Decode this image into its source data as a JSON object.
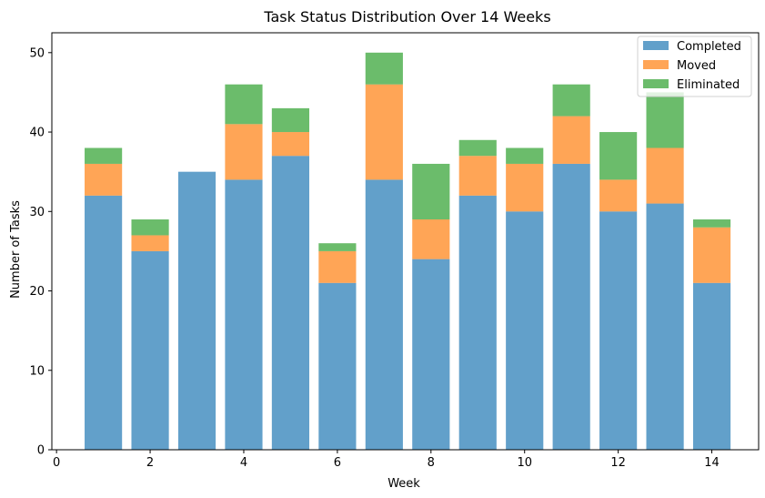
{
  "chart_data": {
    "type": "bar",
    "stacked": true,
    "title": "Task Status Distribution Over 14 Weeks",
    "xlabel": "Week",
    "ylabel": "Number of Tasks",
    "x": [
      1,
      2,
      3,
      4,
      5,
      6,
      7,
      8,
      9,
      10,
      11,
      12,
      13,
      14
    ],
    "xlim": [
      -0.1,
      15.0
    ],
    "ylim": [
      0,
      52.5
    ],
    "xticks": [
      0,
      2,
      4,
      6,
      8,
      10,
      12,
      14
    ],
    "yticks": [
      0,
      10,
      20,
      30,
      40,
      50
    ],
    "grid": false,
    "legend_position": "top-right",
    "series": [
      {
        "name": "Completed",
        "color": "#1f77b4",
        "values": [
          32,
          25,
          35,
          34,
          37,
          21,
          34,
          24,
          32,
          30,
          36,
          30,
          31,
          21
        ]
      },
      {
        "name": "Moved",
        "color": "#ff7f0e",
        "values": [
          4,
          2,
          0,
          7,
          3,
          4,
          12,
          5,
          5,
          6,
          6,
          4,
          7,
          7
        ]
      },
      {
        "name": "Eliminated",
        "color": "#2ca02c",
        "values": [
          2,
          2,
          0,
          5,
          3,
          1,
          4,
          7,
          2,
          2,
          4,
          6,
          7,
          1
        ]
      }
    ]
  }
}
